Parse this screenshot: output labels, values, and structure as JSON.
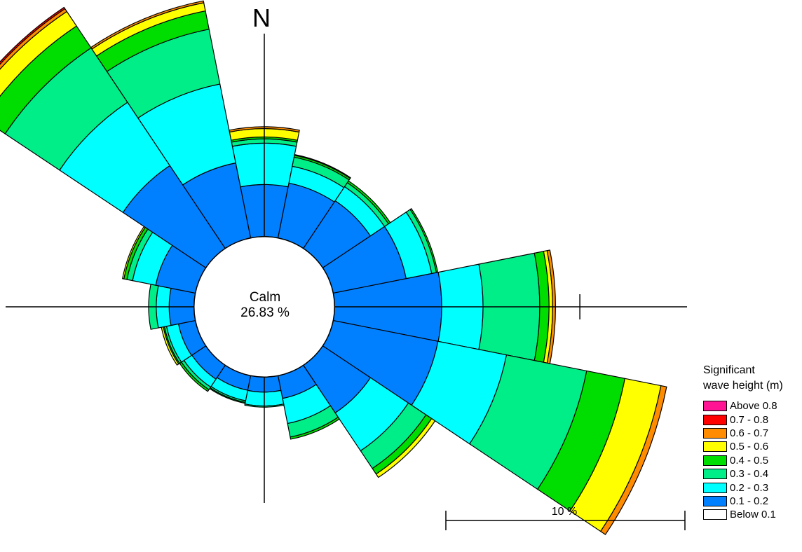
{
  "chart_data": {
    "type": "wind-rose",
    "north_label": "N",
    "calm_label": "Calm",
    "calm_value": "26.83 %",
    "scale_bar_label": "10 %",
    "legend_title_lines": [
      "Significant",
      "wave height (m)"
    ],
    "bins": [
      {
        "label": "Above 0.8",
        "color": "#ff1493"
      },
      {
        "label": "0.7 - 0.8",
        "color": "#ff0000"
      },
      {
        "label": "0.6 - 0.7",
        "color": "#ff8c00"
      },
      {
        "label": "0.5 - 0.6",
        "color": "#ffff00"
      },
      {
        "label": "0.4 - 0.5",
        "color": "#00dd00"
      },
      {
        "label": "0.3 - 0.4",
        "color": "#00ee88"
      },
      {
        "label": "0.2 - 0.3",
        "color": "#00ffff"
      },
      {
        "label": "0.1 - 0.2",
        "color": "#0080ff"
      },
      {
        "label": "Below 0.1",
        "color": "#ffffff"
      }
    ],
    "stack_order": [
      "0.1 - 0.2",
      "0.2 - 0.3",
      "0.3 - 0.4",
      "0.4 - 0.5",
      "0.5 - 0.6",
      "0.6 - 0.7",
      "0.7 - 0.8",
      "Above 0.8"
    ],
    "units": "cumulative frequency (%)",
    "calm_radius_pct": 2.94,
    "sectors": [
      {
        "dir": 0,
        "cumulative": [
          5.12,
          6.85,
          7.03,
          7.11,
          7.46,
          7.54
        ]
      },
      {
        "dir": 22.5,
        "cumulative": [
          5.28,
          6.0,
          6.39,
          6.47,
          6.5
        ]
      },
      {
        "dir": 45,
        "cumulative": [
          5.34,
          6.05,
          6.25,
          6.34
        ]
      },
      {
        "dir": 67.5,
        "cumulative": [
          6.05,
          7.14,
          7.34,
          7.4
        ]
      },
      {
        "dir": 90,
        "cumulative": [
          7.42,
          9.15,
          11.52,
          11.91,
          12.06,
          12.18
        ]
      },
      {
        "dir": 112.5,
        "cumulative": [
          7.41,
          10.33,
          13.75,
          15.38,
          16.92,
          17.16
        ]
      },
      {
        "dir": 135,
        "cumulative": [
          5.34,
          7.25,
          8.14,
          8.42,
          8.59
        ]
      },
      {
        "dir": 157.5,
        "cumulative": [
          3.91,
          4.98,
          5.56,
          5.65
        ]
      },
      {
        "dir": 180,
        "cumulative": [
          3.57,
          4.15,
          4.2
        ]
      },
      {
        "dir": 202.5,
        "cumulative": [
          3.56,
          4.01,
          4.08,
          4.12
        ]
      },
      {
        "dir": 225,
        "cumulative": [
          3.64,
          4.04,
          4.17,
          4.26
        ]
      },
      {
        "dir": 247.5,
        "cumulative": [
          3.66,
          4.17,
          4.26,
          4.31,
          4.39
        ]
      },
      {
        "dir": 270,
        "cumulative": [
          3.98,
          4.52,
          4.84
        ]
      },
      {
        "dir": 292.5,
        "cumulative": [
          4.63,
          5.62,
          5.86,
          5.99,
          6.05
        ]
      },
      {
        "dir": 315,
        "cumulative": [
          7.11,
          10.3,
          13.04,
          14.14,
          14.87,
          15.01,
          15.08
        ]
      },
      {
        "dir": 337.5,
        "cumulative": [
          6.14,
          9.51,
          11.85,
          12.63,
          12.98,
          13.06
        ]
      }
    ]
  }
}
